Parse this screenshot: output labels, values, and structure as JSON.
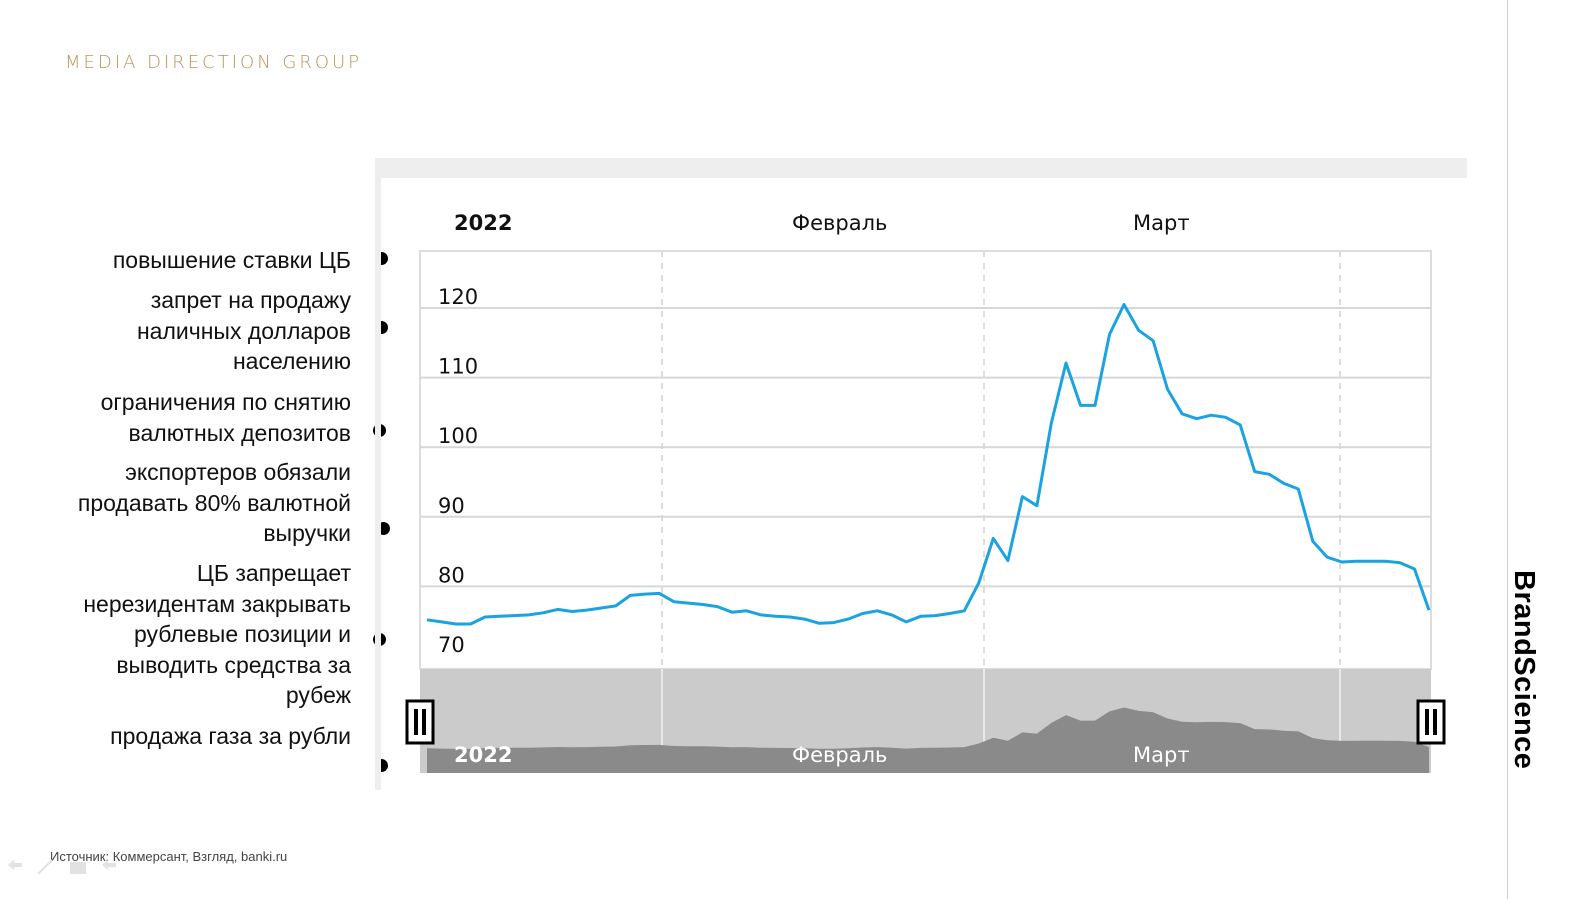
{
  "header": {
    "brand": "MEDIA DIRECTION GROUP"
  },
  "side_brand": "BrandScience",
  "annotations": [
    {
      "id": "a1",
      "text": "повышение ставки ЦБ"
    },
    {
      "id": "a2",
      "text": "запрет на продажу наличных долларов населению"
    },
    {
      "id": "a3",
      "text": "ограничения по снятию валютных депозитов"
    },
    {
      "id": "a4",
      "text": "экспортеров обязали продавать 80% валютной выручки"
    },
    {
      "id": "a5",
      "text": "ЦБ запрещает нерезидентам закрывать рублевые позиции и выводить средства за рубеж"
    },
    {
      "id": "a6",
      "text": "продажа газа за рубли"
    }
  ],
  "footer": {
    "source": "Источник: Коммерсант, Взгляд, banki.ru"
  },
  "colors": {
    "line": "#1aa3e0",
    "brand": "#b8945a",
    "navigator_bg": "#cbcbcb",
    "navigator_area": "#8a8a8a"
  },
  "chart_data": {
    "type": "line",
    "period_labels": [
      "2022",
      "Февраль",
      "Март"
    ],
    "ylim": [
      70,
      125
    ],
    "yticks": [
      70,
      80,
      90,
      100,
      110,
      120
    ],
    "grid": true,
    "series": [
      {
        "values": [
          75.2,
          74.9,
          74.6,
          74.6,
          75.6,
          75.7,
          75.8,
          75.9,
          76.2,
          76.7,
          76.4,
          76.6,
          76.9,
          77.2,
          78.7,
          78.9,
          79.0,
          77.8,
          77.6,
          77.4,
          77.1,
          76.3,
          76.5,
          75.9,
          75.7,
          75.6,
          75.3,
          74.7,
          74.8,
          75.3,
          76.1,
          76.5,
          75.9,
          74.9,
          75.7,
          75.8,
          76.1,
          76.5,
          80.5,
          86.9,
          83.7,
          92.9,
          91.6,
          103.5,
          112.1,
          106.0,
          106.0,
          116.2,
          120.5,
          116.8,
          115.3,
          108.3,
          104.8,
          104.1,
          104.6,
          104.3,
          103.2,
          96.5,
          96.1,
          94.8,
          94.0,
          86.5,
          84.2,
          83.5,
          83.6,
          83.6,
          83.6,
          83.4,
          82.5,
          76.6
        ]
      }
    ]
  }
}
